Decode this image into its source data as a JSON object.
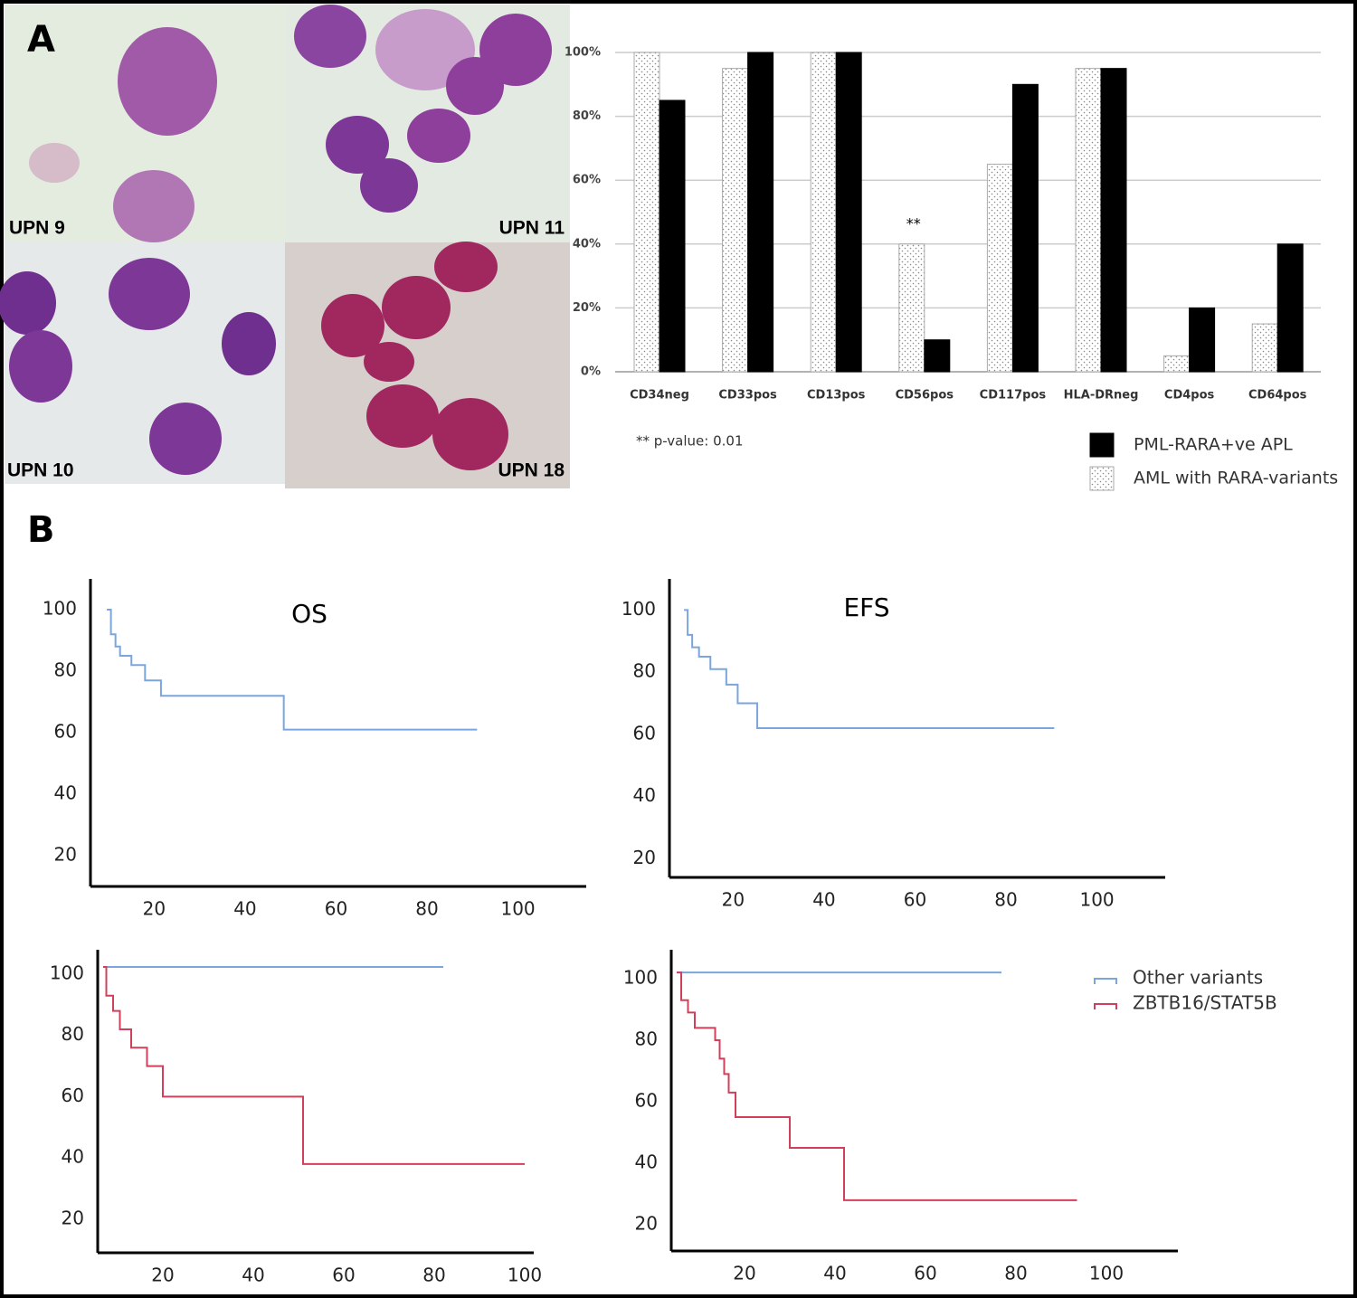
{
  "panels": {
    "a": "A",
    "b": "B"
  },
  "images": [
    {
      "label": "UPN 9"
    },
    {
      "label": "UPN 11"
    },
    {
      "label": "UPN 10"
    },
    {
      "label": "UPN 18"
    }
  ],
  "chart_data": [
    {
      "type": "bar",
      "categories": [
        "CD34neg",
        "CD33pos",
        "CD13pos",
        "CD56pos",
        "CD117pos",
        "HLA-DRneg",
        "CD4pos",
        "CD64pos"
      ],
      "series": [
        {
          "name": "AML with RARA-variants",
          "color": "#ffffff",
          "fill_pattern": "dots",
          "values": [
            100,
            95,
            100,
            40,
            65,
            95,
            5,
            15
          ]
        },
        {
          "name": "PML-RARA+ve APL",
          "color": "#000000",
          "values": [
            85,
            100,
            100,
            10,
            90,
            95,
            20,
            40
          ]
        }
      ],
      "ylim": [
        0,
        100
      ],
      "yticks": [
        {
          "value": 0,
          "label": "0%"
        },
        {
          "value": 20,
          "label": "20%"
        },
        {
          "value": 40,
          "label": "40%"
        },
        {
          "value": 60,
          "label": "60%"
        },
        {
          "value": 80,
          "label": "80%"
        },
        {
          "value": 100,
          "label": "100%"
        }
      ],
      "grid": true,
      "annotations": [
        {
          "text": "**",
          "category": 3
        }
      ],
      "note": "** p-value: 0.01",
      "legend": "lower right"
    },
    {
      "type": "step",
      "title": "OS",
      "xlim": [
        6,
        115
      ],
      "ylim": [
        10,
        110
      ],
      "xticks": [
        20,
        40,
        60,
        80,
        100
      ],
      "yticks": [
        20,
        40,
        60,
        80,
        100
      ],
      "series": [
        {
          "color": "#7aa6dd",
          "x": [
            9.6,
            10.5,
            11.5,
            12.5,
            15,
            18,
            21.5,
            48.5,
            91
          ],
          "values": [
            100,
            92,
            88,
            85,
            82,
            77,
            72,
            61,
            61
          ]
        }
      ]
    },
    {
      "type": "step",
      "title": "EFS",
      "xlim": [
        6,
        115
      ],
      "ylim": [
        14,
        110
      ],
      "xticks": [
        20,
        40,
        60,
        80,
        100
      ],
      "yticks": [
        20,
        40,
        60,
        80,
        100
      ],
      "series": [
        {
          "color": "#7aa6dd",
          "x": [
            9.2,
            10,
            11,
            12.5,
            15,
            18.5,
            21,
            25.3,
            90.6
          ],
          "values": [
            100,
            92,
            88,
            85,
            81,
            76,
            70,
            62,
            62
          ]
        }
      ]
    },
    {
      "type": "step",
      "xlim": [
        5.6,
        102
      ],
      "ylim": [
        9,
        108
      ],
      "xticks": [
        20,
        40,
        60,
        80,
        100
      ],
      "yticks": [
        20,
        40,
        60,
        80,
        100
      ],
      "series": [
        {
          "color": "#7aa6dd",
          "x": [
            6.8,
            82
          ],
          "values": [
            102.4,
            102.4
          ]
        },
        {
          "color": "#d0405a",
          "x": [
            6.8,
            7.5,
            9,
            10.5,
            13,
            16.5,
            20,
            51,
            100
          ],
          "values": [
            102.4,
            93,
            88,
            82,
            76,
            70,
            60,
            38,
            38
          ]
        }
      ]
    },
    {
      "type": "step",
      "xlim": [
        3.8,
        115.8
      ],
      "ylim": [
        11.5,
        109.4
      ],
      "xticks": [
        20,
        40,
        60,
        80,
        100
      ],
      "yticks": [
        20,
        40,
        60,
        80,
        100
      ],
      "legend": "upper right",
      "series": [
        {
          "name": "Other variants",
          "color": "#7aa6dd",
          "x": [
            5,
            76.8
          ],
          "values": [
            102,
            102
          ]
        },
        {
          "name": "ZBTB16/STAT5B",
          "color": "#d0405a",
          "x": [
            5,
            6,
            7.5,
            9,
            13.5,
            14.5,
            15.5,
            16.5,
            18,
            30,
            42,
            93.5
          ],
          "values": [
            102,
            93,
            89,
            84,
            80,
            74,
            69,
            63,
            55,
            45,
            28,
            28
          ]
        }
      ]
    }
  ]
}
